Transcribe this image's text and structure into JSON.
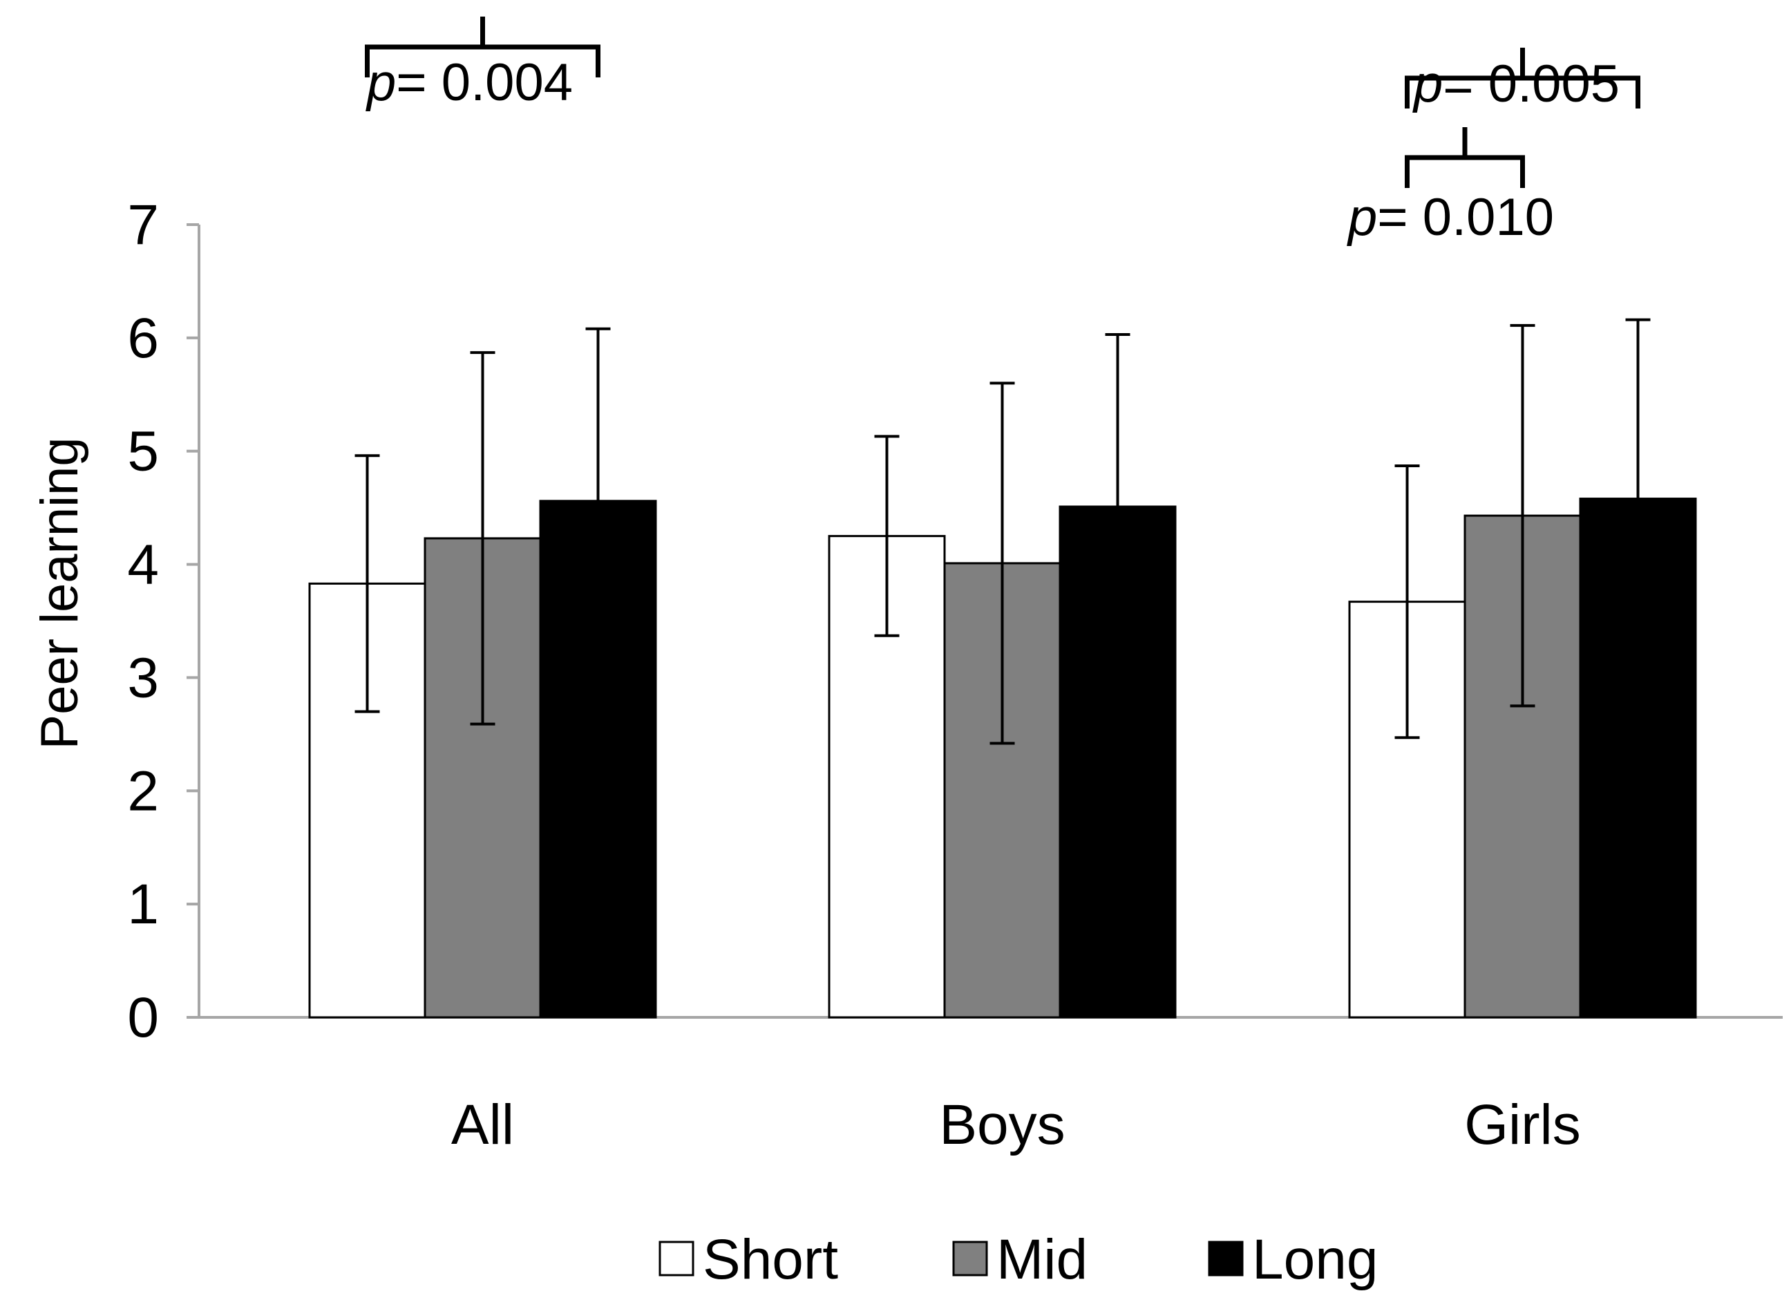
{
  "chart_data": {
    "type": "bar",
    "title": "",
    "xlabel": "",
    "ylabel": "Peer learning",
    "ylim": [
      0,
      7
    ],
    "yticks": [
      0,
      1,
      2,
      3,
      4,
      5,
      6,
      7
    ],
    "grid": false,
    "legend_position": "bottom",
    "categories": [
      "All",
      "Boys",
      "Girls"
    ],
    "series": [
      {
        "name": "Short",
        "color": "#ffffff",
        "values": [
          3.83,
          4.25,
          3.67
        ],
        "error": [
          1.13,
          0.88,
          1.2
        ]
      },
      {
        "name": "Mid",
        "color": "#808080",
        "values": [
          4.23,
          4.01,
          4.43
        ],
        "error": [
          1.64,
          1.59,
          1.68
        ]
      },
      {
        "name": "Long",
        "color": "#000000",
        "values": [
          4.56,
          4.51,
          4.58
        ],
        "error": [
          1.52,
          1.52,
          1.58
        ]
      }
    ],
    "annotations": [
      {
        "category": "All",
        "from_series": "Short",
        "to_series": "Long",
        "p_label": "p",
        "p_value": "= 0.004"
      },
      {
        "category": "Girls",
        "from_series": "Short",
        "to_series": "Long",
        "p_label": "p",
        "p_value": "= 0.005"
      },
      {
        "category": "Girls",
        "from_series": "Short",
        "to_series": "Mid",
        "p_label": "p",
        "p_value": "= 0.010"
      }
    ]
  }
}
